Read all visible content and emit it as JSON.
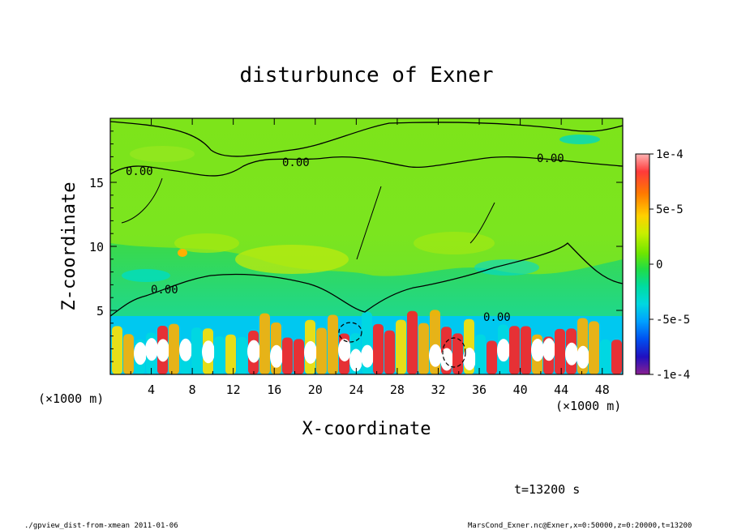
{
  "chart_data": {
    "type": "heatmap",
    "title": "disturbunce of Exner",
    "xlabel": "X-coordinate",
    "ylabel": "Z-coordinate",
    "x_unit": "(×1000 m)",
    "x_unit_right": "(×1000 m)",
    "xlim": [
      0,
      50
    ],
    "ylim": [
      0,
      20
    ],
    "x_ticks": [
      "4",
      "8",
      "12",
      "16",
      "20",
      "24",
      "28",
      "32",
      "36",
      "40",
      "44",
      "48"
    ],
    "y_ticks": [
      "5",
      "10",
      "15"
    ],
    "colorbar": {
      "range": [
        -0.0001,
        0.0001
      ],
      "tick_labels": [
        "1e-4",
        "5e-5",
        "0",
        "-5e-5",
        "-1e-4"
      ],
      "colors": [
        "#ffb3b3",
        "#ff5a5a",
        "#ff1a1a",
        "#ff7a00",
        "#ffb000",
        "#ffe000",
        "#d8f000",
        "#a8ec00",
        "#6fe600",
        "#33dd33",
        "#00d880",
        "#00e0d0",
        "#00b8f0",
        "#0080ff",
        "#0040f0",
        "#1a10d0",
        "#600090",
        "#8a2090"
      ]
    },
    "contour_labels": [
      "0.00",
      "0.00",
      "0.00",
      "0.00",
      "0.00"
    ],
    "time_label": "t=13200 s"
  },
  "footer": {
    "left": "./gpview_dist-from-xmean  2011-01-06",
    "right": "MarsCond_Exner.nc@Exner,x=0:50000,z=0:20000,t=13200"
  }
}
